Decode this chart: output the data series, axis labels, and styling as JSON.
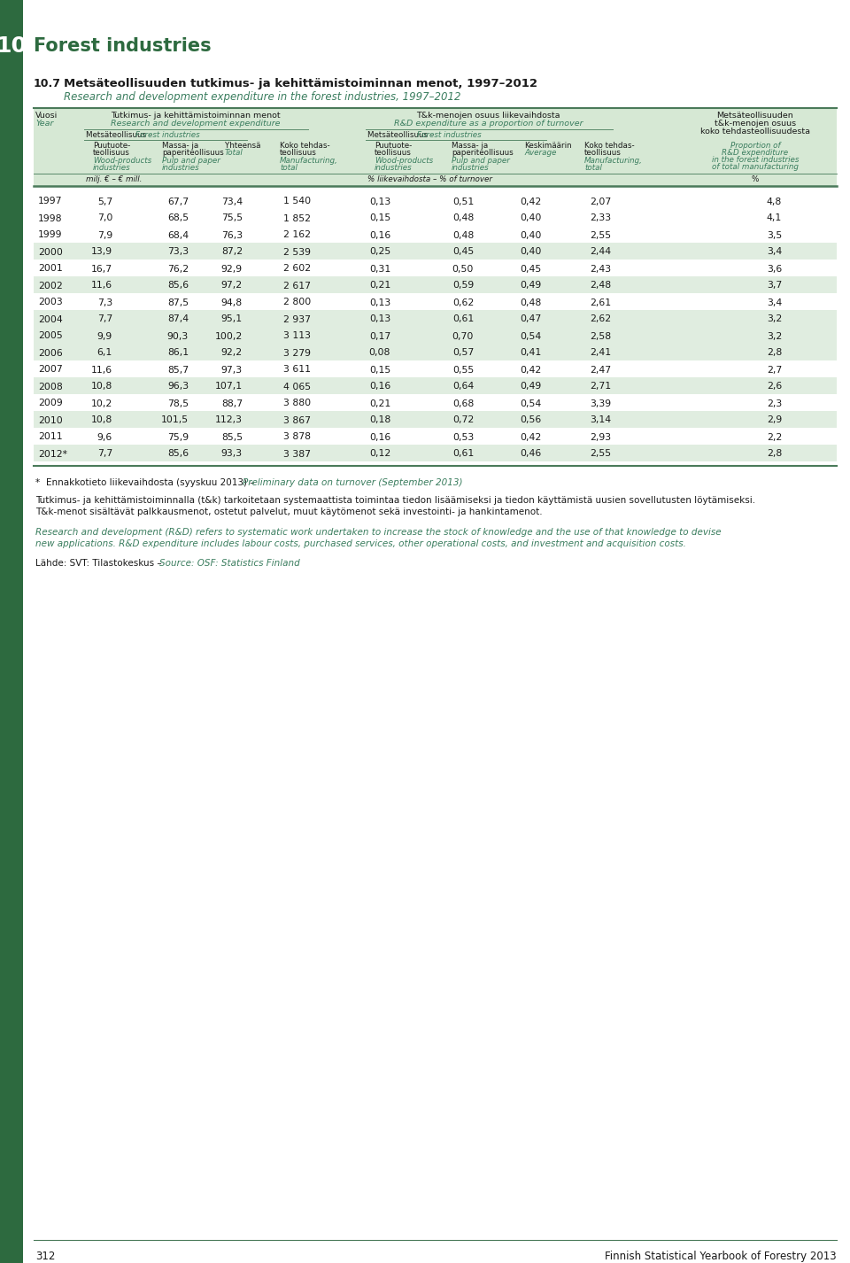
{
  "chapter_num": "10",
  "chapter_title": "Forest industries",
  "table_num": "10.7",
  "table_title_fi": "Metsäteollisuuden tutkimus- ja kehittämistoiminnan menot, 1997–2012",
  "table_title_en": "Research and development expenditure in the forest industries, 1997–2012",
  "header_bg": "#d6e8d4",
  "alt_row_bg": "#e0ede0",
  "dark_green": "#2d6a3f",
  "teal_green": "#3a7d5e",
  "black": "#1a1a1a",
  "rows": [
    [
      "1997",
      "5,7",
      "67,7",
      "73,4",
      "1 540",
      "0,13",
      "0,51",
      "0,42",
      "2,07",
      "4,8"
    ],
    [
      "1998",
      "7,0",
      "68,5",
      "75,5",
      "1 852",
      "0,15",
      "0,48",
      "0,40",
      "2,33",
      "4,1"
    ],
    [
      "1999",
      "7,9",
      "68,4",
      "76,3",
      "2 162",
      "0,16",
      "0,48",
      "0,40",
      "2,55",
      "3,5"
    ],
    [
      "2000",
      "13,9",
      "73,3",
      "87,2",
      "2 539",
      "0,25",
      "0,45",
      "0,40",
      "2,44",
      "3,4"
    ],
    [
      "2001",
      "16,7",
      "76,2",
      "92,9",
      "2 602",
      "0,31",
      "0,50",
      "0,45",
      "2,43",
      "3,6"
    ],
    [
      "2002",
      "11,6",
      "85,6",
      "97,2",
      "2 617",
      "0,21",
      "0,59",
      "0,49",
      "2,48",
      "3,7"
    ],
    [
      "2003",
      "7,3",
      "87,5",
      "94,8",
      "2 800",
      "0,13",
      "0,62",
      "0,48",
      "2,61",
      "3,4"
    ],
    [
      "2004",
      "7,7",
      "87,4",
      "95,1",
      "2 937",
      "0,13",
      "0,61",
      "0,47",
      "2,62",
      "3,2"
    ],
    [
      "2005",
      "9,9",
      "90,3",
      "100,2",
      "3 113",
      "0,17",
      "0,70",
      "0,54",
      "2,58",
      "3,2"
    ],
    [
      "2006",
      "6,1",
      "86,1",
      "92,2",
      "3 279",
      "0,08",
      "0,57",
      "0,41",
      "2,41",
      "2,8"
    ],
    [
      "2007",
      "11,6",
      "85,7",
      "97,3",
      "3 611",
      "0,15",
      "0,55",
      "0,42",
      "2,47",
      "2,7"
    ],
    [
      "2008",
      "10,8",
      "96,3",
      "107,1",
      "4 065",
      "0,16",
      "0,64",
      "0,49",
      "2,71",
      "2,6"
    ],
    [
      "2009",
      "10,2",
      "78,5",
      "88,7",
      "3 880",
      "0,21",
      "0,68",
      "0,54",
      "3,39",
      "2,3"
    ],
    [
      "2010",
      "10,8",
      "101,5",
      "112,3",
      "3 867",
      "0,18",
      "0,72",
      "0,56",
      "3,14",
      "2,9"
    ],
    [
      "2011",
      "9,6",
      "75,9",
      "85,5",
      "3 878",
      "0,16",
      "0,53",
      "0,42",
      "2,93",
      "2,2"
    ],
    [
      "2012*",
      "7,7",
      "85,6",
      "93,3",
      "3 387",
      "0,12",
      "0,61",
      "0,46",
      "2,55",
      "2,8"
    ]
  ],
  "shade_rows": [
    "2000",
    "2002",
    "2004",
    "2005",
    "2006",
    "2008",
    "2010",
    "2012*"
  ],
  "footnote1_fi": "Ennakkotieto liikevaihdosta (syyskuu 2013) –",
  "footnote1_en": "Preliminary data on turnover (September 2013)",
  "footnote2_fi": "Tutkimus- ja kehittämistoiminnalla (t&k) tarkoitetaan systemaattista toimintaa tiedon lisäämiseksi ja tiedon käyttämistä uusien sovellutusten löytämiseksi.",
  "footnote2b_fi": "T&k-menot sisältävät palkkausmenot, ostetut palvelut, muut käytömenot sekä investointi- ja hankintamenot.",
  "footnote3_en": "Research and development (R&D) refers to systematic work undertaken to increase the stock of knowledge and the use of that knowledge to devise",
  "footnote3b_en": "new applications. R&D expenditure includes labour costs, purchased services, other operational costs, and investment and acquisition costs.",
  "source_fi": "Lähde: SVT: Tilastokeskus –",
  "source_en": "Source: OSF: Statistics Finland",
  "page_num": "312",
  "page_footer": "Finnish Statistical Yearbook of Forestry 2013"
}
